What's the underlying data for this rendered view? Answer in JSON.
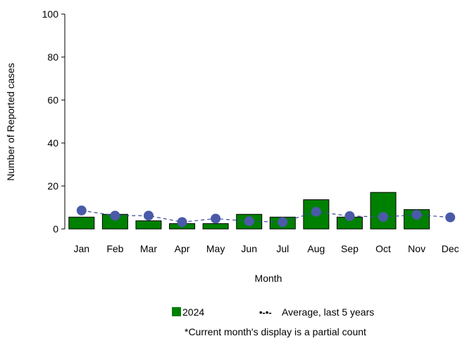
{
  "chart_data": {
    "type": "bar",
    "title": "",
    "xlabel": "Month",
    "ylabel": "Number of Reported cases",
    "ylim": [
      0,
      100
    ],
    "yticks": [
      0,
      20,
      40,
      60,
      80,
      100
    ],
    "grid": false,
    "categories": [
      "Jan",
      "Feb",
      "Mar",
      "Apr",
      "May",
      "Jun",
      "Jul",
      "Aug",
      "Sep",
      "Oct",
      "Nov",
      "Dec"
    ],
    "series": [
      {
        "name": "2024",
        "type": "bar",
        "color": "#008000",
        "values": [
          5.5,
          6.8,
          3.8,
          2.5,
          2.5,
          6.8,
          5.5,
          13.6,
          5.5,
          17.0,
          9.0,
          null
        ]
      },
      {
        "name": "Average, last 5 years",
        "type": "line",
        "color": "#4a5aa8",
        "values": [
          8.6,
          6.2,
          6.2,
          3.2,
          4.8,
          3.6,
          3.2,
          8.0,
          6.0,
          5.6,
          6.6,
          5.4
        ]
      }
    ],
    "legend": {
      "position": "bottom",
      "bar_label": "2024",
      "line_symbol": "•-•-",
      "line_label": "Average, last 5 years"
    },
    "footnote": "*Current month's display is a partial count"
  }
}
